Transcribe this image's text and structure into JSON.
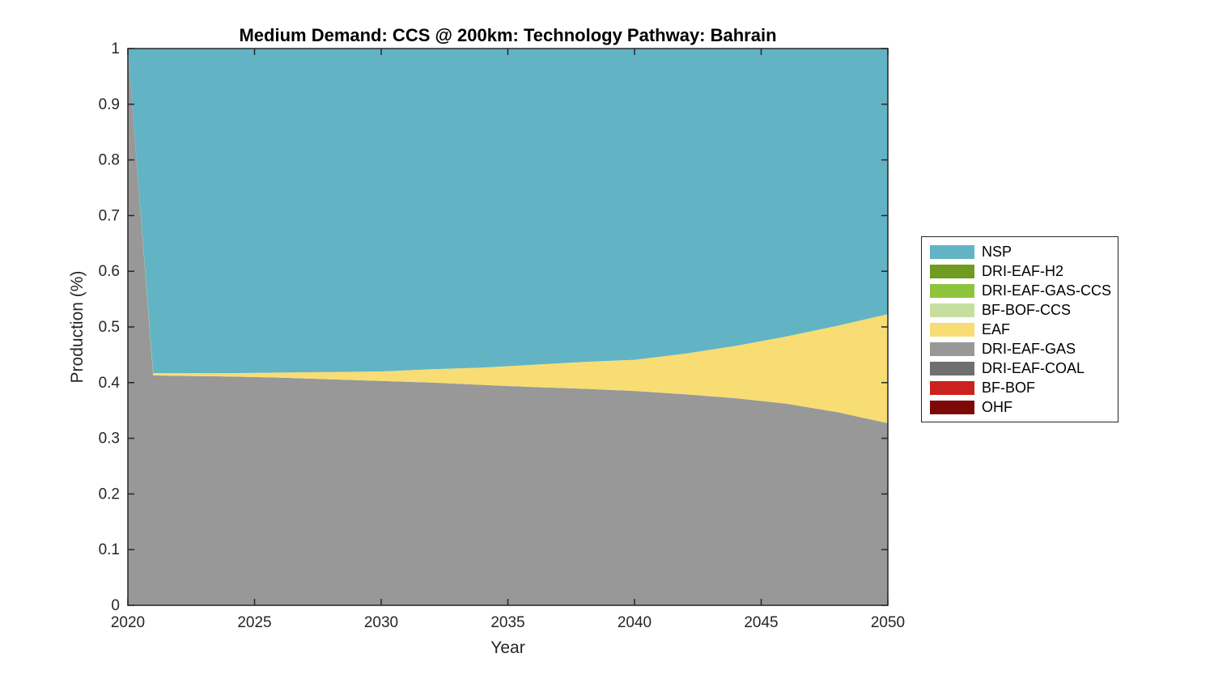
{
  "figure": {
    "background": "#ffffff",
    "axis_color": "#262626",
    "title_color": "#000000"
  },
  "chart_data": {
    "type": "area",
    "stacked": true,
    "normalized": true,
    "title": "Medium Demand: CCS @ 200km: Technology Pathway: Bahrain",
    "xlabel": "Year",
    "ylabel": "Production (%)",
    "xlim": [
      2020,
      2050
    ],
    "ylim": [
      0,
      1
    ],
    "grid": false,
    "box": true,
    "legend_position": "right-of-plot",
    "xticks": [
      2020,
      2025,
      2030,
      2035,
      2040,
      2045,
      2050
    ],
    "xtick_labels": [
      "2020",
      "2025",
      "2030",
      "2035",
      "2040",
      "2045",
      "2050"
    ],
    "yticks": [
      0,
      0.1,
      0.2,
      0.3,
      0.4,
      0.5,
      0.6,
      0.7,
      0.8,
      0.9,
      1
    ],
    "ytick_labels": [
      "0",
      "0.1",
      "0.2",
      "0.3",
      "0.4",
      "0.5",
      "0.6",
      "0.7",
      "0.8",
      "0.9",
      "1"
    ],
    "x": [
      2020,
      2021,
      2022,
      2024,
      2026,
      2028,
      2030,
      2032,
      2034,
      2036,
      2038,
      2040,
      2042,
      2044,
      2046,
      2048,
      2050
    ],
    "stack_order": [
      "OHF",
      "BF-BOF",
      "DRI-EAF-COAL",
      "DRI-EAF-GAS",
      "EAF",
      "BF-BOF-CCS",
      "DRI-EAF-GAS-CCS",
      "DRI-EAF-H2",
      "NSP"
    ],
    "series": [
      {
        "name": "NSP",
        "color": "#62b4c5",
        "values": [
          0,
          0.583,
          0.583,
          0.583,
          0.582,
          0.581,
          0.58,
          0.576,
          0.573,
          0.568,
          0.563,
          0.559,
          0.548,
          0.534,
          0.517,
          0.498,
          0.477
        ]
      },
      {
        "name": "DRI-EAF-H2",
        "color": "#6e9b20",
        "values": [
          0,
          0,
          0,
          0,
          0,
          0,
          0,
          0,
          0,
          0,
          0,
          0,
          0,
          0,
          0,
          0,
          0
        ]
      },
      {
        "name": "DRI-EAF-GAS-CCS",
        "color": "#8ec43d",
        "values": [
          0,
          0,
          0,
          0,
          0,
          0,
          0,
          0,
          0,
          0,
          0,
          0,
          0,
          0,
          0,
          0,
          0
        ]
      },
      {
        "name": "BF-BOF-CCS",
        "color": "#c6dfa0",
        "values": [
          0,
          0,
          0,
          0,
          0,
          0,
          0,
          0,
          0,
          0,
          0,
          0,
          0,
          0,
          0,
          0,
          0
        ]
      },
      {
        "name": "EAF",
        "color": "#f7dd74",
        "values": [
          0,
          0.004,
          0.005,
          0.006,
          0.009,
          0.013,
          0.017,
          0.024,
          0.031,
          0.04,
          0.048,
          0.056,
          0.073,
          0.094,
          0.121,
          0.155,
          0.196
        ]
      },
      {
        "name": "DRI-EAF-GAS",
        "color": "#989898",
        "values": [
          1.0,
          0.413,
          0.412,
          0.411,
          0.409,
          0.406,
          0.403,
          0.4,
          0.396,
          0.392,
          0.389,
          0.385,
          0.379,
          0.372,
          0.362,
          0.347,
          0.327
        ]
      },
      {
        "name": "DRI-EAF-COAL",
        "color": "#6f6f6f",
        "values": [
          0,
          0,
          0,
          0,
          0,
          0,
          0,
          0,
          0,
          0,
          0,
          0,
          0,
          0,
          0,
          0,
          0
        ]
      },
      {
        "name": "BF-BOF",
        "color": "#cb2220",
        "values": [
          0,
          0,
          0,
          0,
          0,
          0,
          0,
          0,
          0,
          0,
          0,
          0,
          0,
          0,
          0,
          0,
          0
        ]
      },
      {
        "name": "OHF",
        "color": "#7c0808",
        "values": [
          0,
          0,
          0,
          0,
          0,
          0,
          0,
          0,
          0,
          0,
          0,
          0,
          0,
          0,
          0,
          0,
          0
        ]
      }
    ]
  }
}
